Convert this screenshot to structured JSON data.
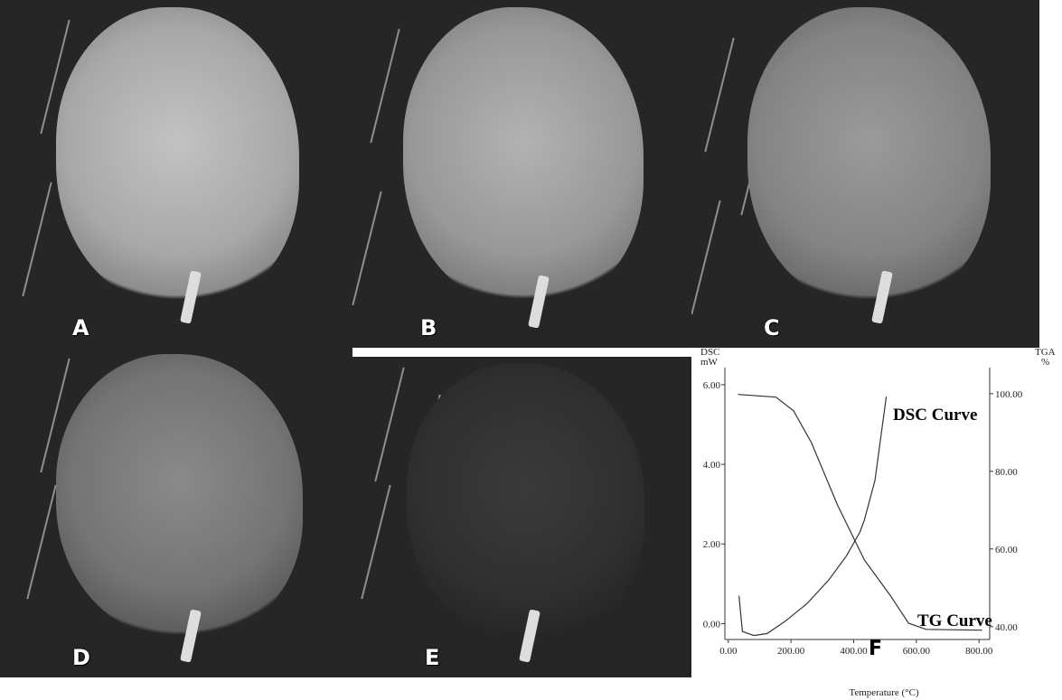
{
  "panels": [
    {
      "label": "A"
    },
    {
      "label": "B"
    },
    {
      "label": "C"
    },
    {
      "label": "D"
    },
    {
      "label": "E"
    }
  ],
  "chart_data": {
    "type": "line",
    "panel_label": "F",
    "y_label": "DSC",
    "y_unit": "mW",
    "y2_label": "TGA",
    "y2_unit": "%",
    "x_label": "Temperature (°C)",
    "xlim": [
      -11,
      834
    ],
    "xticks": [
      {
        "value": 0,
        "label": "0.00"
      },
      {
        "value": 200,
        "label": "200.00"
      },
      {
        "value": 400,
        "label": "400.00"
      },
      {
        "value": 600,
        "label": "600.00"
      },
      {
        "value": 800,
        "label": "800.00"
      }
    ],
    "ylim": [
      -0.4,
      6.43
    ],
    "yticks": [
      {
        "value": 0,
        "label": "0.00"
      },
      {
        "value": 2,
        "label": "2.00"
      },
      {
        "value": 4,
        "label": "4.00"
      },
      {
        "value": 6,
        "label": "6.00"
      }
    ],
    "y2lim": [
      36.7,
      106.7
    ],
    "y2ticks": [
      {
        "value": 40,
        "label": "40.00"
      },
      {
        "value": 60,
        "label": "60.00"
      },
      {
        "value": 80,
        "label": "80.00"
      },
      {
        "value": 100,
        "label": "100.00"
      }
    ],
    "series": [
      {
        "name": "DSC Curve",
        "color": "#333333",
        "x": [
          34,
          45,
          82,
          124,
          180,
          251,
          321,
          377,
          420,
          434,
          468,
          504
        ],
        "values": [
          0.7,
          -0.2,
          -0.3,
          -0.25,
          0.05,
          0.5,
          1.1,
          1.7,
          2.3,
          2.6,
          3.6,
          5.7
        ]
      },
      {
        "name": "TG Curve",
        "color": "#333333",
        "axis": "y2",
        "x": [
          31,
          152,
          208,
          265,
          349,
          434,
          518,
          575,
          631,
          810
        ],
        "values": [
          99.8,
          99.1,
          95.6,
          87.4,
          71.2,
          57.2,
          47.9,
          40.9,
          39.3,
          39.1
        ]
      }
    ]
  }
}
